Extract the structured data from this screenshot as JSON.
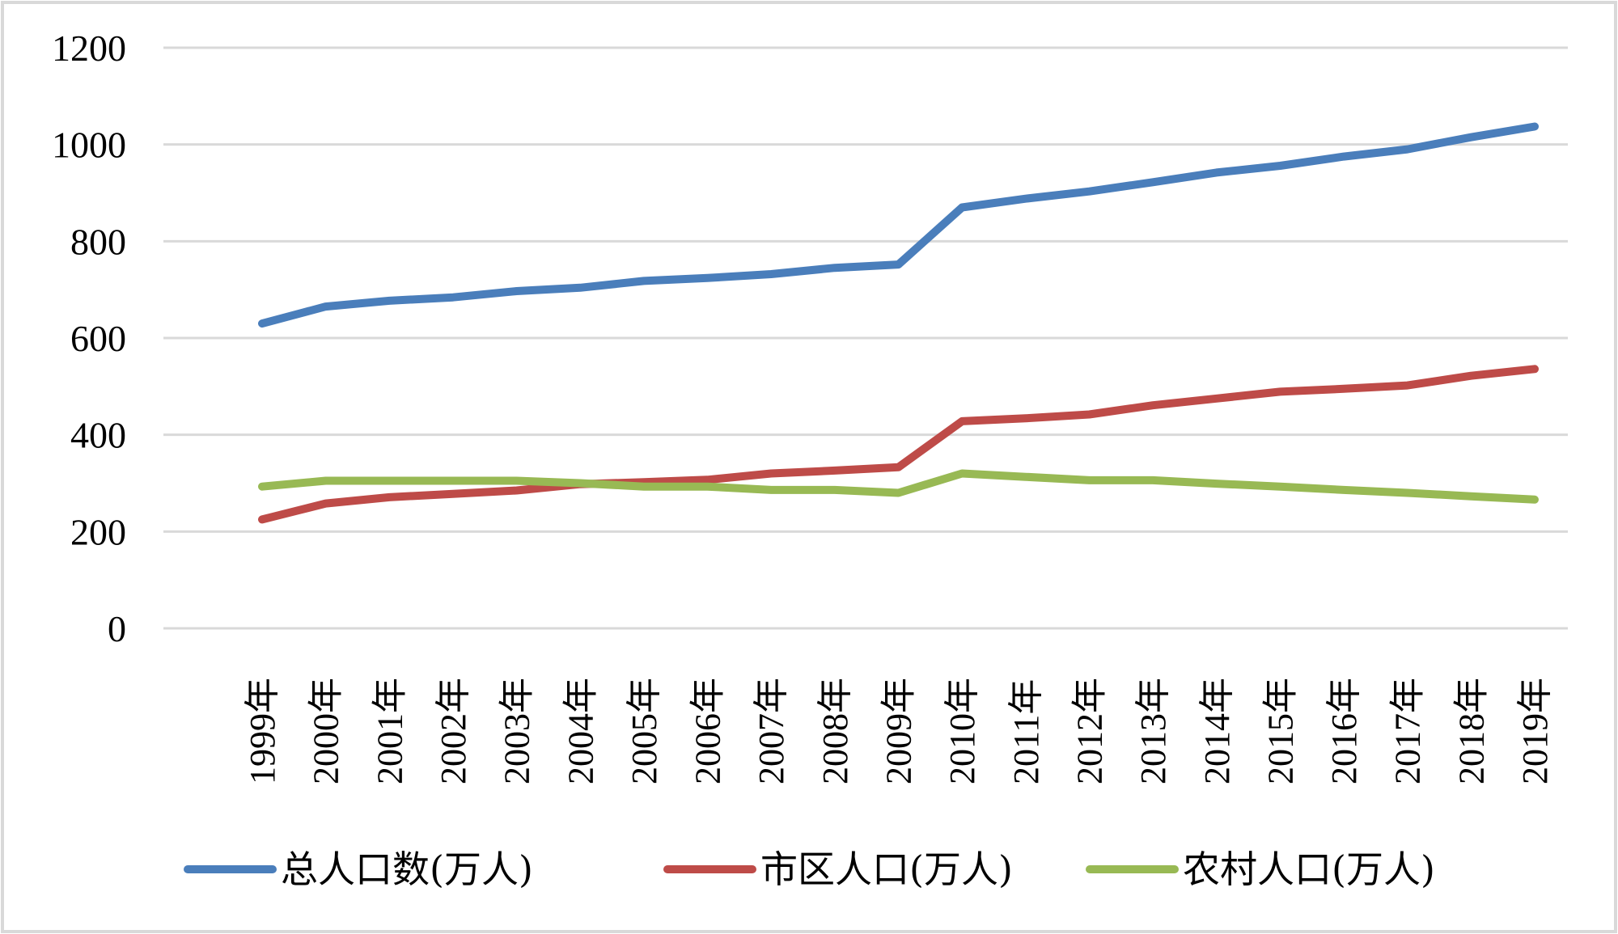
{
  "chart_data": {
    "type": "line",
    "title": "",
    "xlabel": "",
    "ylabel": "",
    "ylim": [
      0,
      1200
    ],
    "yticks": [
      0,
      200,
      400,
      600,
      800,
      1000,
      1200
    ],
    "grid": "horizontal",
    "legend_position": "bottom",
    "categories": [
      "1999年",
      "2000年",
      "2001年",
      "2002年",
      "2003年",
      "2004年",
      "2005年",
      "2006年",
      "2007年",
      "2008年",
      "2009年",
      "2010年",
      "2011年",
      "2012年",
      "2013年",
      "2014年",
      "2015年",
      "2016年",
      "2017年",
      "2018年",
      "2019年"
    ],
    "series": [
      {
        "name": "总人口数(万人)",
        "color": "#4A7EBB",
        "values": [
          630,
          665,
          677,
          684,
          697,
          704,
          718,
          724,
          732,
          745,
          752,
          870,
          888,
          903,
          922,
          942,
          956,
          975,
          990,
          1015,
          1037
        ]
      },
      {
        "name": "市区人口(万人)",
        "color": "#BE4B48",
        "values": [
          225,
          258,
          271,
          278,
          285,
          298,
          302,
          307,
          320,
          326,
          333,
          428,
          434,
          442,
          461,
          475,
          489,
          495,
          502,
          522,
          536
        ]
      },
      {
        "name": "农村人口(万人)",
        "color": "#98B954",
        "values": [
          293,
          305,
          305,
          305,
          305,
          300,
          293,
          293,
          286,
          286,
          280,
          320,
          313,
          306,
          306,
          299,
          293,
          286,
          280,
          273,
          266
        ]
      }
    ]
  },
  "frame_color": "#D9D9D9",
  "grid_color": "#D9D9D9"
}
